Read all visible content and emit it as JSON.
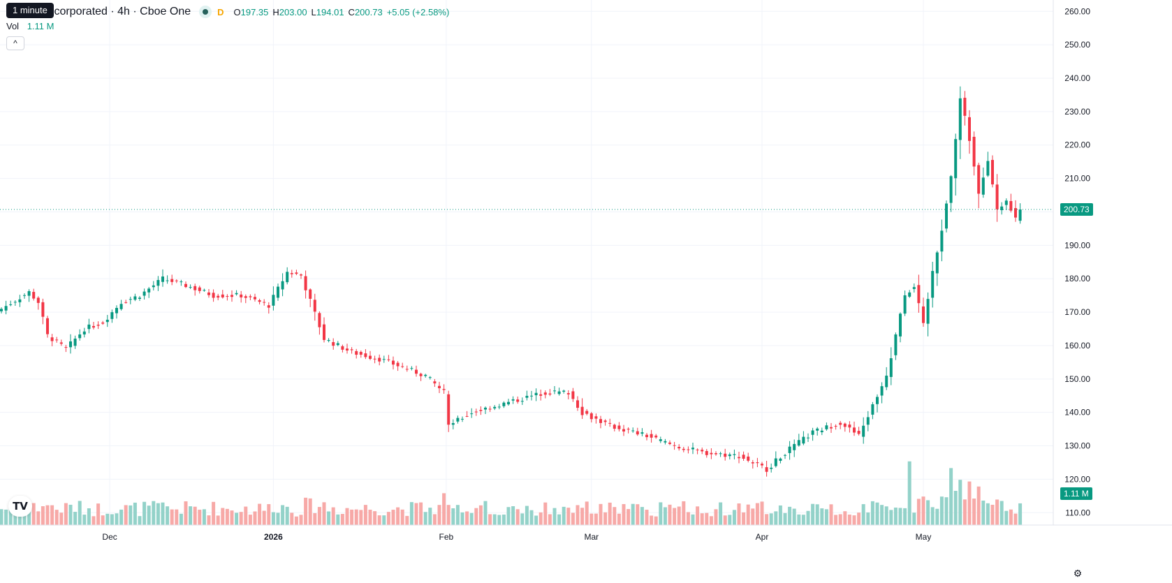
{
  "header": {
    "title": "COMM Incorporated · 4h · Cboe One",
    "tooltip": "1 minute",
    "mode_letter": "D",
    "ohlc": [
      {
        "k": "O",
        "v": "197.35"
      },
      {
        "k": "H",
        "v": "203.00"
      },
      {
        "k": "L",
        "v": "194.01"
      },
      {
        "k": "C",
        "v": "200.73"
      }
    ],
    "change": "+5.05 (+2.58%)",
    "vol_label": "Vol",
    "vol_value": "1.11 M",
    "collapse_symbol": "^",
    "logo_text": "TV",
    "settings_symbol": "⚙"
  },
  "colors": {
    "up": "#089981",
    "down": "#f23645",
    "up_volume": "#93d2c9",
    "down_volume": "#f7a9a7",
    "grid": "#f0f3fa",
    "last_price_line": "#089981"
  },
  "last_price_label": "200.73",
  "last_volume_label": "1.11 M",
  "chart_data": {
    "type": "candlestick",
    "title": "COMM Incorporated · 4h · Cboe One",
    "y_ticks": [
      "110.00",
      "120.00",
      "130.00",
      "140.00",
      "150.00",
      "160.00",
      "170.00",
      "180.00",
      "190.00",
      "200.00",
      "210.00",
      "220.00",
      "230.00",
      "240.00",
      "250.00",
      "260.00"
    ],
    "ylim": [
      106.3,
      263.4
    ],
    "x_ticks": [
      {
        "label": "Dec",
        "index": 23.5
      },
      {
        "label": "2026",
        "index": 59
      },
      {
        "label": "Feb",
        "index": 96.5
      },
      {
        "label": "Mar",
        "index": 128
      },
      {
        "label": "Apr",
        "index": 165
      },
      {
        "label": "May",
        "index": 200
      }
    ],
    "x_tick_bold": [
      "2026"
    ],
    "grid": true,
    "last_price": 200.73,
    "volume_pane_shares_axis": true,
    "anchors": [
      [
        0,
        171
      ],
      [
        6,
        176
      ],
      [
        8,
        173
      ],
      [
        10,
        163
      ],
      [
        14,
        159
      ],
      [
        18,
        165
      ],
      [
        22,
        167
      ],
      [
        26,
        173
      ],
      [
        30,
        175
      ],
      [
        35,
        180
      ],
      [
        40,
        178
      ],
      [
        46,
        175
      ],
      [
        52,
        175
      ],
      [
        58,
        172
      ],
      [
        62,
        182
      ],
      [
        65,
        181
      ],
      [
        70,
        162
      ],
      [
        76,
        158
      ],
      [
        82,
        156
      ],
      [
        92,
        151
      ],
      [
        96,
        146
      ],
      [
        97,
        136
      ],
      [
        102,
        140
      ],
      [
        110,
        143
      ],
      [
        118,
        146
      ],
      [
        123,
        146
      ],
      [
        126,
        140
      ],
      [
        132,
        136
      ],
      [
        140,
        133
      ],
      [
        146,
        130
      ],
      [
        152,
        128
      ],
      [
        160,
        127
      ],
      [
        166,
        123
      ],
      [
        170,
        128
      ],
      [
        176,
        134
      ],
      [
        182,
        137
      ],
      [
        186,
        133
      ],
      [
        190,
        145
      ],
      [
        192,
        151
      ],
      [
        196,
        175
      ],
      [
        198,
        178
      ],
      [
        200,
        166
      ],
      [
        202,
        182
      ],
      [
        204,
        195
      ],
      [
        206,
        210
      ],
      [
        208,
        234
      ],
      [
        210,
        222
      ],
      [
        212,
        205
      ],
      [
        214,
        216
      ],
      [
        216,
        200
      ],
      [
        218,
        203
      ],
      [
        220,
        199
      ],
      [
        221,
        200.73
      ]
    ],
    "volume_spikes": [
      [
        96,
        19
      ],
      [
        97,
        12
      ],
      [
        98,
        10
      ],
      [
        191,
        12
      ],
      [
        193,
        9
      ],
      [
        197,
        38
      ],
      [
        204,
        17
      ],
      [
        206,
        34
      ],
      [
        208,
        27
      ],
      [
        210,
        26
      ],
      [
        212,
        23
      ],
      [
        214,
        13
      ]
    ]
  }
}
